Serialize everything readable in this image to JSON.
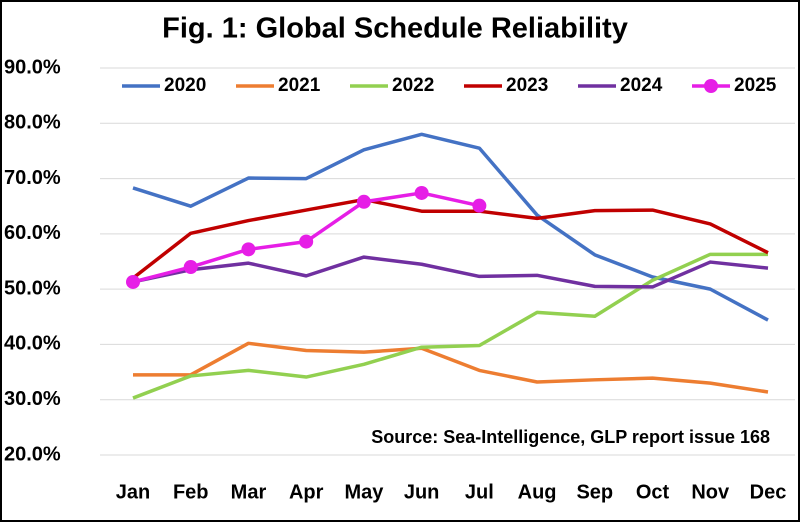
{
  "chart_data": {
    "type": "line",
    "title": "Fig. 1: Global Schedule Reliability",
    "annotation": "Source: Sea-Intelligence, GLP report issue 168",
    "categories": [
      "Jan",
      "Feb",
      "Mar",
      "Apr",
      "May",
      "Jun",
      "Jul",
      "Aug",
      "Sep",
      "Oct",
      "Nov",
      "Dec"
    ],
    "ylim": [
      20,
      90
    ],
    "yticks": [
      {
        "value": 20,
        "label": "20.0%"
      },
      {
        "value": 30,
        "label": "30.0%"
      },
      {
        "value": 40,
        "label": "40.0%"
      },
      {
        "value": 50,
        "label": "50.0%"
      },
      {
        "value": 60,
        "label": "60.0%"
      },
      {
        "value": 70,
        "label": "70.0%"
      },
      {
        "value": 80,
        "label": "80.0%"
      },
      {
        "value": 90,
        "label": "90.0%"
      }
    ],
    "grid": true,
    "legend": "top",
    "series": [
      {
        "name": "2020",
        "color": "#4472c4",
        "values": [
          68.3,
          65.0,
          70.1,
          70.0,
          75.2,
          78.0,
          75.5,
          63.4,
          56.2,
          52.2,
          50.0,
          44.4
        ]
      },
      {
        "name": "2021",
        "color": "#ed7d31",
        "values": [
          34.5,
          34.5,
          40.2,
          38.9,
          38.6,
          39.3,
          35.3,
          33.2,
          33.6,
          33.9,
          33.0,
          31.4
        ]
      },
      {
        "name": "2022",
        "color": "#92d050",
        "values": [
          30.3,
          34.3,
          35.3,
          34.1,
          36.4,
          39.5,
          39.8,
          45.8,
          45.1,
          51.6,
          56.3,
          56.3
        ]
      },
      {
        "name": "2023",
        "color": "#c00000",
        "values": [
          52.0,
          60.1,
          62.4,
          64.3,
          66.2,
          64.1,
          64.1,
          62.8,
          64.2,
          64.3,
          61.8,
          56.6
        ]
      },
      {
        "name": "2024",
        "color": "#7030a0",
        "values": [
          51.3,
          53.5,
          54.7,
          52.4,
          55.8,
          54.5,
          52.3,
          52.5,
          50.5,
          50.4,
          54.9,
          53.8
        ]
      },
      {
        "name": "2025",
        "color": "#e61ee6",
        "markers": true,
        "values": [
          51.3,
          54.0,
          57.2,
          58.6,
          65.8,
          67.4,
          65.1,
          null,
          null,
          null,
          null,
          null
        ]
      }
    ]
  }
}
